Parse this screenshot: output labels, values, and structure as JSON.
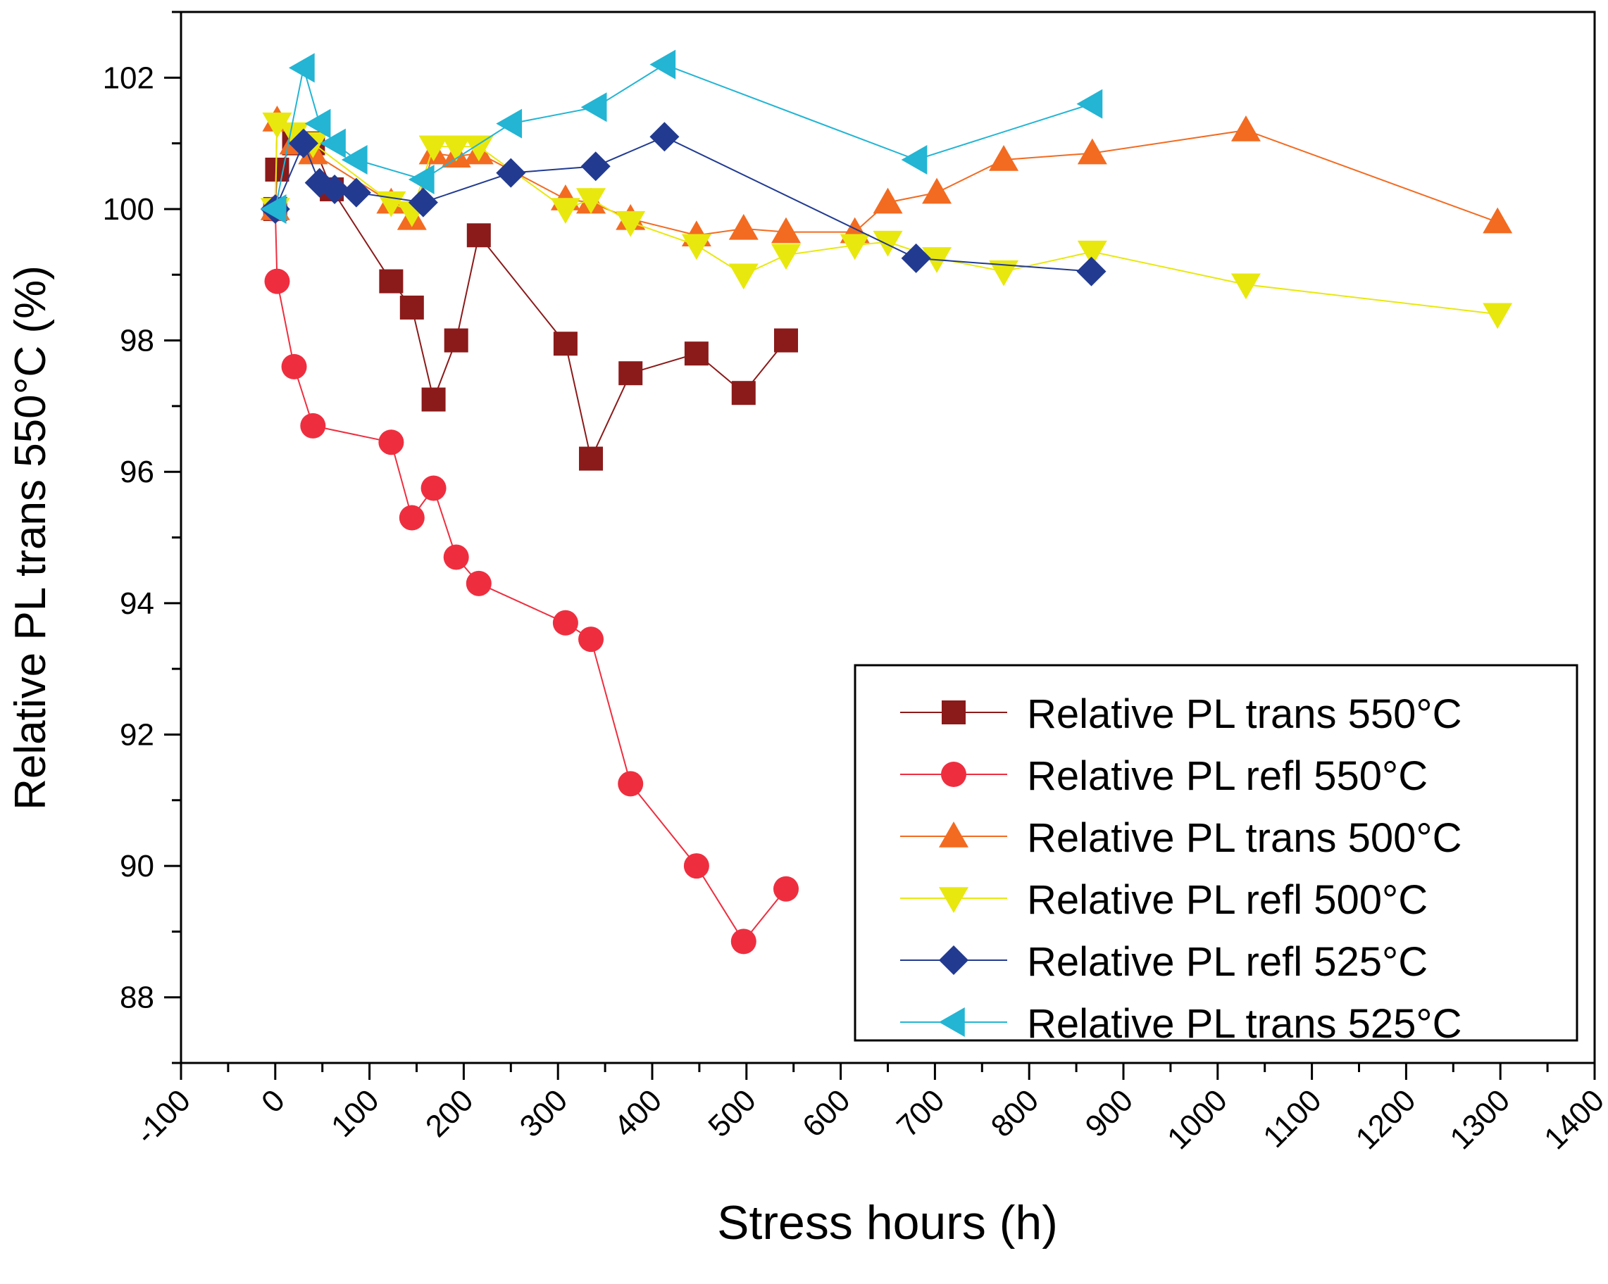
{
  "chart_data": {
    "type": "line",
    "title": "",
    "xlabel": "Stress hours (h)",
    "ylabel": "Relative PL trans 550°C (%)",
    "xlim": [
      -100,
      1400
    ],
    "ylim": [
      87,
      103
    ],
    "x_ticks": [
      -100,
      0,
      100,
      200,
      300,
      400,
      500,
      600,
      700,
      800,
      900,
      1000,
      1100,
      1200,
      1300,
      1400
    ],
    "x_tick_labels": [
      "-100",
      "0",
      "100",
      "200",
      "300",
      "400",
      "500",
      "600",
      "700",
      "800",
      "900",
      "1000",
      "1100",
      "1200",
      "1300",
      "1400"
    ],
    "y_ticks": [
      88,
      90,
      92,
      94,
      96,
      98,
      100,
      102
    ],
    "y_tick_labels": [
      "88",
      "90",
      "92",
      "94",
      "96",
      "98",
      "100",
      "102"
    ],
    "legend_position": "bottom-right",
    "grid": false,
    "series": [
      {
        "name": "Relative PL trans 550°C",
        "color": "#8b1a1a",
        "marker": "square",
        "x": [
          0,
          2,
          20,
          40,
          60,
          123,
          145,
          168,
          192,
          216,
          308,
          335,
          377,
          447,
          497,
          542
        ],
        "y": [
          100.0,
          100.6,
          101.0,
          101.0,
          100.3,
          98.9,
          98.5,
          97.1,
          98.0,
          99.6,
          97.95,
          96.2,
          97.5,
          97.8,
          97.2,
          98.0
        ]
      },
      {
        "name": "Relative PL refl 550°C",
        "color": "#ee2e3f",
        "marker": "circle",
        "x": [
          0,
          2,
          20,
          40,
          123,
          145,
          168,
          192,
          216,
          308,
          335,
          377,
          447,
          497,
          542
        ],
        "y": [
          100.0,
          98.9,
          97.6,
          96.7,
          96.45,
          95.3,
          95.75,
          94.7,
          94.3,
          93.7,
          93.45,
          91.25,
          90.0,
          88.85,
          89.65
        ],
        "comment": ""
      },
      {
        "name": "Relative PL trans 500°C",
        "color": "#f26b21",
        "marker": "triangle-up",
        "x": [
          0,
          2,
          20,
          40,
          123,
          145,
          168,
          192,
          216,
          308,
          335,
          377,
          447,
          497,
          542,
          615,
          650,
          702,
          773,
          867,
          1030,
          1297
        ],
        "y": [
          100.0,
          101.35,
          101.0,
          100.85,
          100.1,
          99.85,
          100.85,
          100.8,
          100.85,
          100.15,
          100.1,
          99.85,
          99.6,
          99.7,
          99.65,
          99.65,
          100.1,
          100.25,
          100.75,
          100.85,
          101.2,
          99.8
        ]
      },
      {
        "name": "Relative PL refl 500°C",
        "color": "#e8e80f",
        "marker": "triangle-down",
        "x": [
          0,
          2,
          20,
          40,
          123,
          145,
          168,
          192,
          216,
          308,
          335,
          377,
          447,
          497,
          542,
          615,
          650,
          702,
          773,
          867,
          1030,
          1297
        ],
        "y": [
          100.0,
          101.3,
          101.15,
          101.0,
          100.1,
          99.95,
          100.95,
          100.95,
          100.95,
          100.0,
          100.15,
          99.8,
          99.45,
          99.0,
          99.3,
          99.45,
          99.5,
          99.25,
          99.05,
          99.35,
          98.85,
          98.4
        ]
      },
      {
        "name": "Relative PL refl 525°C",
        "color": "#223b91",
        "marker": "diamond",
        "x": [
          0,
          30,
          47,
          63,
          86,
          157,
          250,
          340,
          413,
          680,
          866
        ],
        "y": [
          100.0,
          101.0,
          100.4,
          100.3,
          100.25,
          100.1,
          100.55,
          100.65,
          101.1,
          99.25,
          99.05
        ]
      },
      {
        "name": "Relative PL trans 525°C",
        "color": "#23b5d3",
        "marker": "triangle-left",
        "x": [
          0,
          30,
          47,
          63,
          86,
          157,
          250,
          340,
          413,
          680,
          866
        ],
        "y": [
          100.0,
          102.15,
          101.3,
          101.0,
          100.75,
          100.45,
          101.3,
          101.55,
          102.2,
          100.75,
          101.6
        ]
      }
    ]
  }
}
